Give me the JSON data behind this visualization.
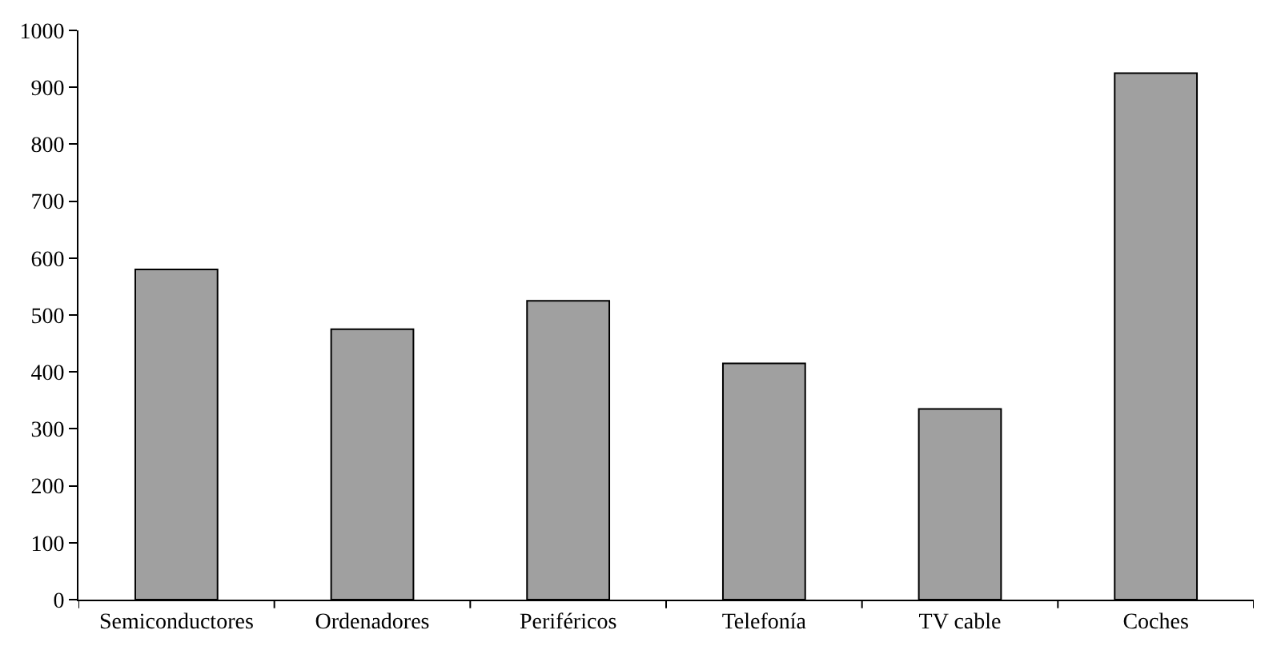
{
  "chart_data": {
    "type": "bar",
    "categories": [
      "Semiconductores",
      "Ordenadores",
      "Periféricos",
      "Telefonía",
      "TV cable",
      "Coches"
    ],
    "values": [
      580,
      475,
      525,
      415,
      335,
      925
    ],
    "color": "#a0a0a0",
    "ylim": [
      0,
      1000
    ],
    "yticks": [
      0,
      100,
      200,
      300,
      400,
      500,
      600,
      700,
      800,
      900,
      1000
    ]
  }
}
